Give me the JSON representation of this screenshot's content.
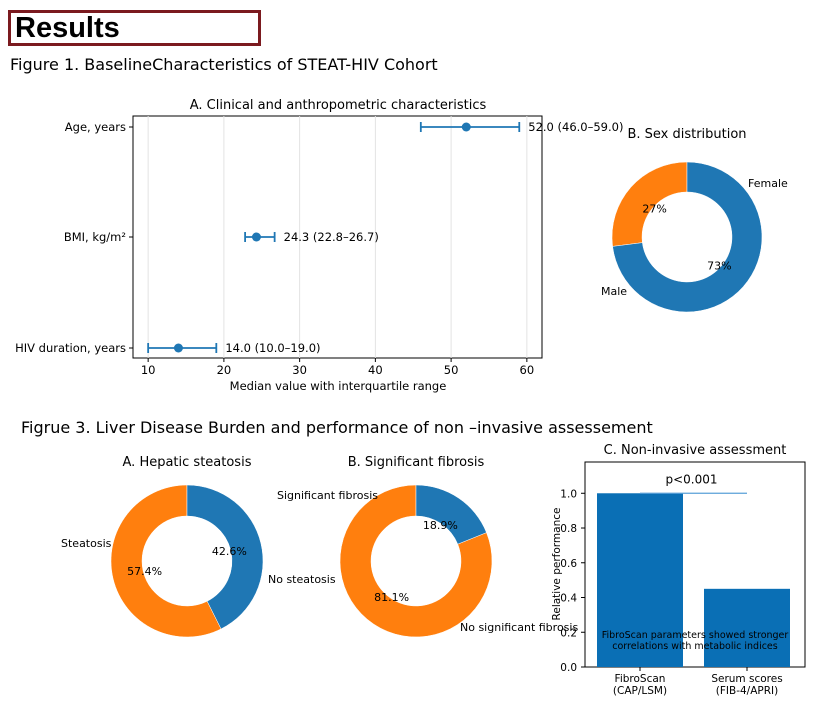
{
  "header": {
    "results_label": "Results"
  },
  "figure1_title": "Figure 1. BaselineCharacteristics of STEAT-HIV Cohort",
  "figure3_title": "Figrue 3. Liver Disease Burden and performance of non –invasive assessement",
  "chart_data": [
    {
      "type": "scatter",
      "title": "A. Clinical and anthropometric characteristics",
      "xlabel": "Median value with interquartile range",
      "ylabel": "",
      "xlim": [
        8,
        62
      ],
      "xticks": [
        10,
        20,
        30,
        40,
        50,
        60
      ],
      "grid": "x",
      "color": "#1f77b4",
      "points": [
        {
          "category": "Age, years",
          "median": 52.0,
          "low": 46.0,
          "high": 59.0,
          "label": "52.0 (46.0–59.0)"
        },
        {
          "category": "BMI, kg/m²",
          "median": 24.3,
          "low": 22.8,
          "high": 26.7,
          "label": "24.3 (22.8–26.7)"
        },
        {
          "category": "HIV duration, years",
          "median": 14.0,
          "low": 10.0,
          "high": 19.0,
          "label": "14.0 (10.0–19.0)"
        }
      ]
    },
    {
      "type": "pie",
      "title": "B. Sex distribution",
      "slices": [
        {
          "label": "Female",
          "value": 27,
          "pct": "27%",
          "color": "#ff7f0e"
        },
        {
          "label": "Male",
          "value": 73,
          "pct": "73%",
          "color": "#1f77b4"
        }
      ]
    },
    {
      "type": "pie",
      "title": "A. Hepatic steatosis",
      "slices": [
        {
          "label": "No steatosis",
          "value": 57.4,
          "pct": "57.4%",
          "color": "#ff7f0e"
        },
        {
          "label": "Steatosis",
          "value": 42.6,
          "pct": "42.6%",
          "color": "#1f77b4"
        }
      ]
    },
    {
      "type": "pie",
      "title": "B. Significant fibrosis",
      "slices": [
        {
          "label": "No significant fibrosis",
          "value": 81.1,
          "pct": "81.1%",
          "color": "#ff7f0e"
        },
        {
          "label": "Significant fibrosis",
          "value": 18.9,
          "pct": "18.9%",
          "color": "#1f77b4"
        }
      ]
    },
    {
      "type": "bar",
      "title": "C. Non-invasive assessment",
      "ylabel": "Relative performance",
      "categories": [
        {
          "line1": "FibroScan",
          "line2": "(CAP/LSM)"
        },
        {
          "line1": "Serum scores",
          "line2": "(FIB-4/APRI)"
        }
      ],
      "values": [
        1.0,
        0.45
      ],
      "ylim": [
        0,
        1.18
      ],
      "yticks": [
        0.0,
        0.2,
        0.4,
        0.6,
        0.8,
        1.0
      ],
      "color": "#0a6fb5",
      "significance": "p<0.001",
      "annotation_lines": [
        "FibroScan parameters showed stronger",
        "correlations with metabolic indices"
      ]
    }
  ]
}
